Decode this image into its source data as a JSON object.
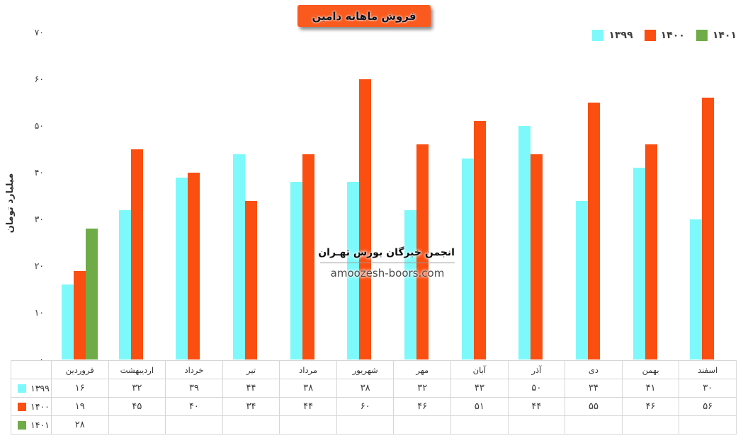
{
  "title": "فروش ماهانه دامین",
  "watermark": {
    "line1": "انجمن خبرگان بورس تهـران",
    "line2": "amoozesh-boors.com"
  },
  "colors": {
    "badge_background": "#FB5A1E",
    "series_1399": "#7EF9FB",
    "series_1400": "#FB4E11",
    "series_1401": "#6FAC47",
    "axis_text": "#3F3F3F",
    "table_border": "#D6D6D6"
  },
  "chart_data": {
    "type": "bar",
    "title": "فروش ماهانه دامین",
    "xlabel": "",
    "ylabel": "میلیارد تومان",
    "ylim": [
      0,
      70
    ],
    "ytick_step": 10,
    "grid": false,
    "legend_position": "top-right",
    "data_table_below_axis": true,
    "categories": [
      "فروردین",
      "اردیبهشت",
      "خرداد",
      "تیر",
      "مرداد",
      "شهریور",
      "مهر",
      "آبان",
      "آذر",
      "دی",
      "بهمن",
      "اسفند"
    ],
    "series": [
      {
        "name": "۱۳۹۹",
        "color": "#7EF9FB",
        "values": [
          16,
          32,
          39,
          44,
          38,
          38,
          32,
          43,
          50,
          34,
          41,
          30
        ]
      },
      {
        "name": "۱۴۰۰",
        "color": "#FB4E11",
        "values": [
          19,
          45,
          40,
          34,
          44,
          60,
          46,
          51,
          44,
          55,
          46,
          56
        ]
      },
      {
        "name": "۱۴۰۱",
        "color": "#6FAC47",
        "values": [
          28,
          null,
          null,
          null,
          null,
          null,
          null,
          null,
          null,
          null,
          null,
          null
        ]
      }
    ]
  }
}
